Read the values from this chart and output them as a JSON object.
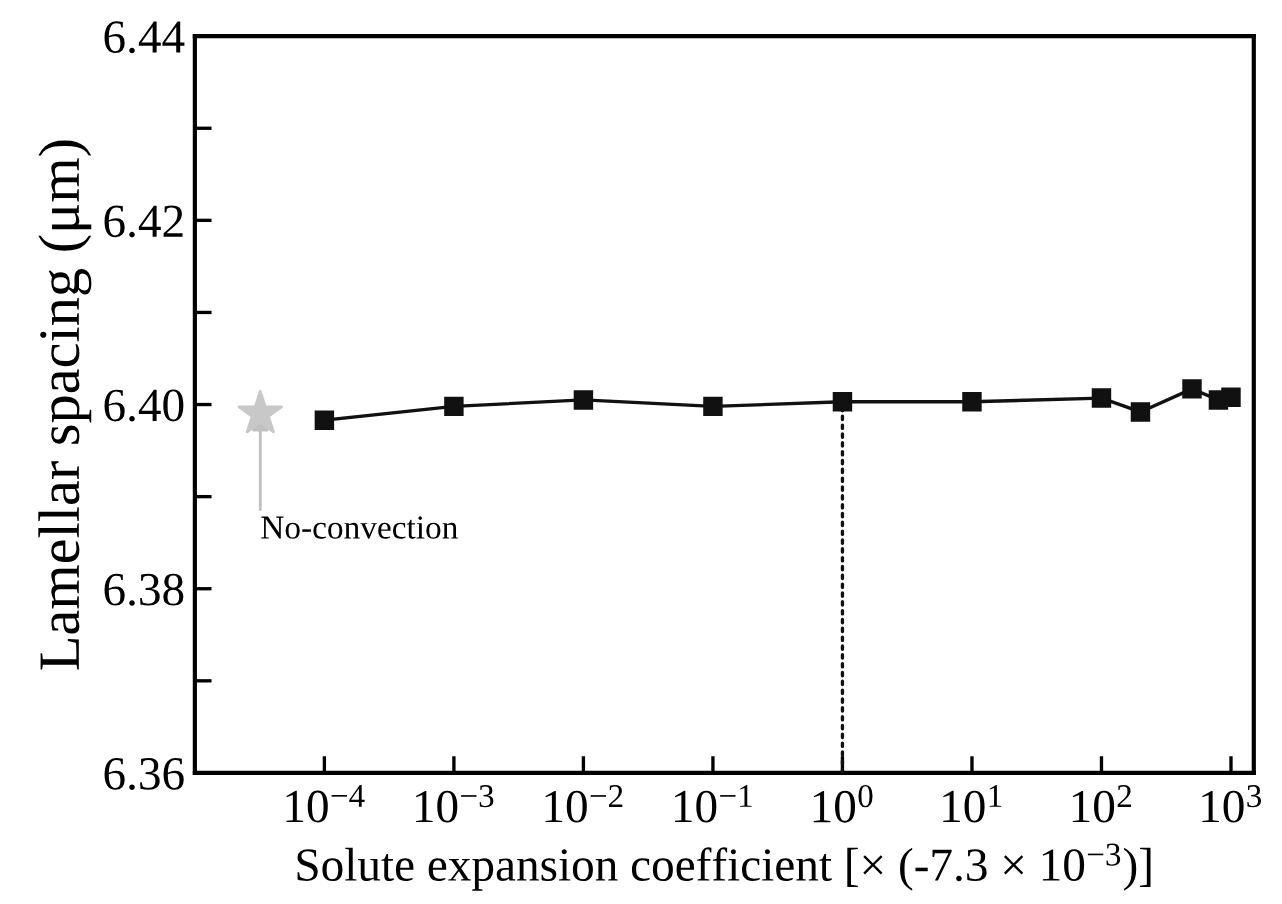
{
  "chart_data": {
    "type": "line",
    "xlabel": "Solute expansion coefficient [× (-7.3 × 10$^{−3}$)]",
    "ylabel": "Lamellar spacing (μm)",
    "log": "x",
    "xlim": [
      1e-05,
      1500
    ],
    "ylim": [
      6.36,
      6.44
    ],
    "xticks": [
      {
        "value": 0.0001,
        "label": "10$^{−4}$"
      },
      {
        "value": 0.001,
        "label": "10$^{−3}$"
      },
      {
        "value": 0.01,
        "label": "10$^{−2}$"
      },
      {
        "value": 0.1,
        "label": "10$^{−1}$"
      },
      {
        "value": 1,
        "label": "10$^{0}$"
      },
      {
        "value": 10,
        "label": "10$^{1}$"
      },
      {
        "value": 100,
        "label": "10$^{2}$"
      },
      {
        "value": 1000,
        "label": "10$^{3}$"
      }
    ],
    "yticks": [
      {
        "value": 6.36,
        "label": "6.36"
      },
      {
        "value": 6.37,
        "label": null
      },
      {
        "value": 6.38,
        "label": "6.38"
      },
      {
        "value": 6.39,
        "label": null
      },
      {
        "value": 6.4,
        "label": "6.40"
      },
      {
        "value": 6.41,
        "label": null
      },
      {
        "value": 6.42,
        "label": "6.42"
      },
      {
        "value": 6.43,
        "label": null
      },
      {
        "value": 6.44,
        "label": "6.44"
      }
    ],
    "grid": false,
    "legend": false,
    "series": [
      {
        "color": "#111111",
        "marker": "square",
        "line_style": "solid",
        "x": [
          0.0001,
          0.001,
          0.01,
          0.1,
          1,
          10,
          100,
          200,
          500,
          800,
          1000
        ],
        "values": [
          6.3983,
          6.3998,
          6.4005,
          6.3998,
          6.4003,
          6.4003,
          6.4007,
          6.3992,
          6.4017,
          6.4005,
          6.4008
        ]
      },
      {
        "type": "scatter",
        "color": "#c8c8c8",
        "marker": "star",
        "x": [
          3.2e-05
        ],
        "values": [
          6.399
        ]
      },
      {
        "type": "line",
        "color": "#111111",
        "marker": "none",
        "line_style": "dotted",
        "x": [
          1,
          1
        ],
        "values": [
          6.36,
          6.4003
        ]
      }
    ],
    "annotations": [
      {
        "text": "No-convection",
        "x": 3.2e-05,
        "y": 6.399
      }
    ]
  }
}
